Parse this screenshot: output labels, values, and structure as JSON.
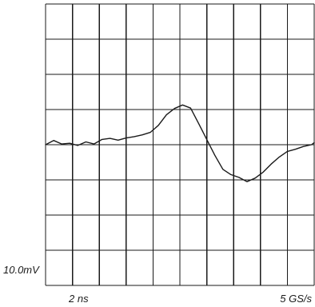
{
  "chart_data": {
    "type": "line",
    "title": "",
    "xlabel": "",
    "ylabel": "",
    "grid": true,
    "divisions": {
      "x": 10,
      "y": 8
    },
    "volts_per_div_label": "10.0mV",
    "time_per_div_label": "2 ns",
    "sample_rate_label": "5 GS/s",
    "time_per_div_ns": 2,
    "volts_per_div_mV": 10,
    "xlim_ns": [
      0,
      20
    ],
    "ylim_mV": [
      -40,
      40
    ],
    "series": [
      {
        "x_ns": [
          0,
          0.6,
          1.2,
          1.8,
          2.4,
          3.0,
          3.6,
          4.2,
          4.8,
          5.4,
          6.0,
          6.6,
          7.2,
          7.8,
          8.4,
          9.0,
          9.6,
          10.2,
          10.8,
          11.4,
          12.0,
          12.6,
          13.2,
          13.8,
          14.4,
          15.0,
          15.6,
          16.2,
          16.8,
          17.4,
          18.0,
          18.6,
          19.2,
          19.8,
          20.0
        ],
        "y_mV": [
          0,
          1.2,
          0.2,
          0.4,
          -0.2,
          0.8,
          0.2,
          1.5,
          1.8,
          1.3,
          1.9,
          2.3,
          2.8,
          3.5,
          5.5,
          8.5,
          10.3,
          11.3,
          10.4,
          6.0,
          1.5,
          -3.0,
          -7.0,
          -8.5,
          -9.3,
          -10.5,
          -9.5,
          -7.8,
          -5.5,
          -3.5,
          -1.9,
          -1.3,
          -0.5,
          0,
          0.6
        ]
      }
    ]
  }
}
